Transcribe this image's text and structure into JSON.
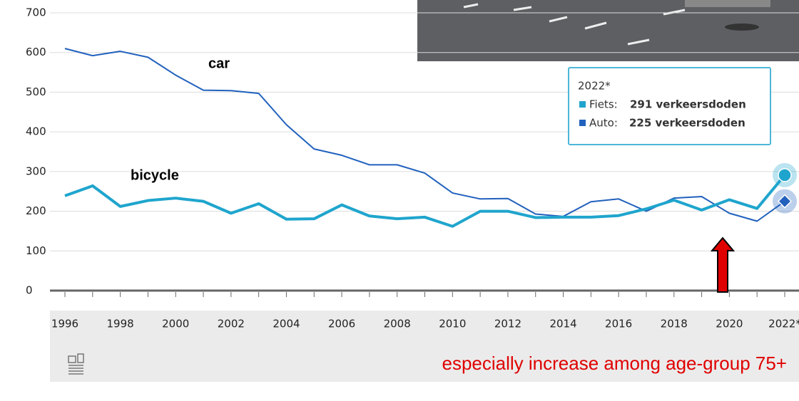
{
  "chart_data": {
    "type": "line",
    "categories": [
      "1996",
      null,
      "1998",
      null,
      "2000",
      null,
      "2002",
      null,
      "2004",
      null,
      "2006",
      null,
      "2008",
      null,
      "2010",
      null,
      "2012",
      null,
      "2014",
      null,
      "2016",
      null,
      "2018",
      null,
      "2020",
      null,
      "2022*"
    ],
    "series": [
      {
        "name": "car",
        "color": "#2161bd",
        "values": [
          610,
          592,
          603,
          588,
          543,
          505,
          504,
          497,
          418,
          357,
          341,
          317,
          317,
          296,
          246,
          231,
          232,
          193,
          187,
          224,
          231,
          200,
          233,
          237,
          195,
          175,
          225
        ]
      },
      {
        "name": "bicycle",
        "color": "#1fa5cd",
        "values": [
          239,
          264,
          212,
          227,
          233,
          225,
          195,
          219,
          180,
          181,
          216,
          188,
          181,
          185,
          162,
          200,
          200,
          184,
          185,
          185,
          189,
          206,
          228,
          203,
          229,
          207,
          291
        ]
      }
    ],
    "ylim": [
      0,
      700
    ],
    "yticks": [
      0,
      100,
      200,
      300,
      400,
      500,
      600,
      700
    ],
    "grid": true,
    "tooltip": {
      "title": "2022*",
      "fiets": "Fiets:",
      "fiets_value": "291 verkeersdoden",
      "auto": "Auto:",
      "auto_value": "225 verkeersdoden"
    },
    "annotation": "especially increase among age-group 75+"
  }
}
